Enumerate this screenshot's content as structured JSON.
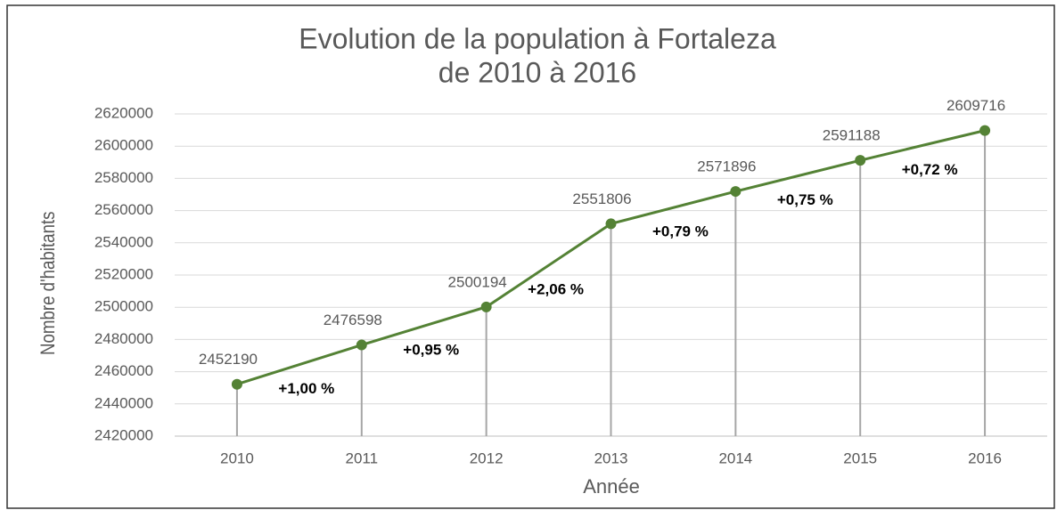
{
  "chart_data": {
    "type": "line",
    "title": [
      "Evolution de la population à Fortaleza",
      "de 2010 à 2016"
    ],
    "x_label": "Année",
    "y_label": "Nombre d'habitants",
    "categories": [
      "2010",
      "2011",
      "2012",
      "2013",
      "2014",
      "2015",
      "2016"
    ],
    "series": [
      {
        "name": "Population",
        "color": "#548235",
        "values": [
          2452190,
          2476598,
          2500194,
          2551806,
          2571896,
          2591188,
          2609716
        ]
      }
    ],
    "annotations": [
      "+1,00 %",
      "+0,95 %",
      "+2,06 %",
      "+0,79 %",
      "+0,75 %",
      "+0,72 %"
    ],
    "ylim": [
      2420000,
      2620000
    ],
    "yticks": [
      2420000,
      2440000,
      2460000,
      2480000,
      2500000,
      2520000,
      2540000,
      2560000,
      2580000,
      2600000,
      2620000
    ],
    "grid": true
  }
}
